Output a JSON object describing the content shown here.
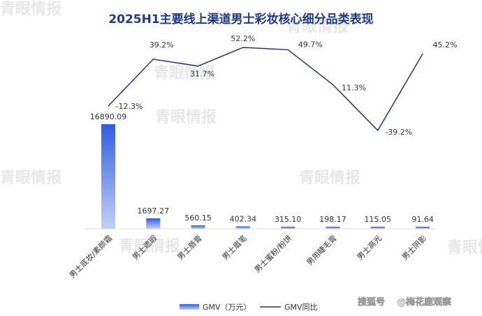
{
  "chart_data": {
    "type": "bar+line",
    "title": "2025H1主要线上渠道男士彩妆核心细分品类表现",
    "categories": [
      "男士底妆/素颜霜",
      "男士遮瑕",
      "男士唇膏",
      "男士眉笔",
      "男士蜜粉/粉饼",
      "男用睫毛膏",
      "男士高光",
      "男士阴影"
    ],
    "series": [
      {
        "name": "GMV（万元）",
        "type": "bar",
        "values": [
          16890.09,
          1697.27,
          560.15,
          402.34,
          315.1,
          198.17,
          115.05,
          91.64
        ],
        "labels": [
          "16890.09",
          "1697.27",
          "560.15",
          "402.34",
          "315.10",
          "198.17",
          "115.05",
          "91.64"
        ]
      },
      {
        "name": "GMV同比",
        "type": "line",
        "values": [
          -12.3,
          39.2,
          31.7,
          52.2,
          49.7,
          11.3,
          -39.2,
          45.2
        ],
        "labels": [
          "-12.3%",
          "39.2%",
          "31.7%",
          "52.2%",
          "49.7%",
          "11.3%",
          "-39.2%",
          "45.2%"
        ]
      }
    ],
    "legend_position": "bottom",
    "colors": {
      "bar_top": "#2f5de0",
      "bar_bottom": "#c4d0f5",
      "line": "#24337a",
      "title": "#1f3a8a"
    }
  },
  "watermark": "青眼情报",
  "credit": "@梅花鹿观察",
  "credit_platform": "搜狐号"
}
